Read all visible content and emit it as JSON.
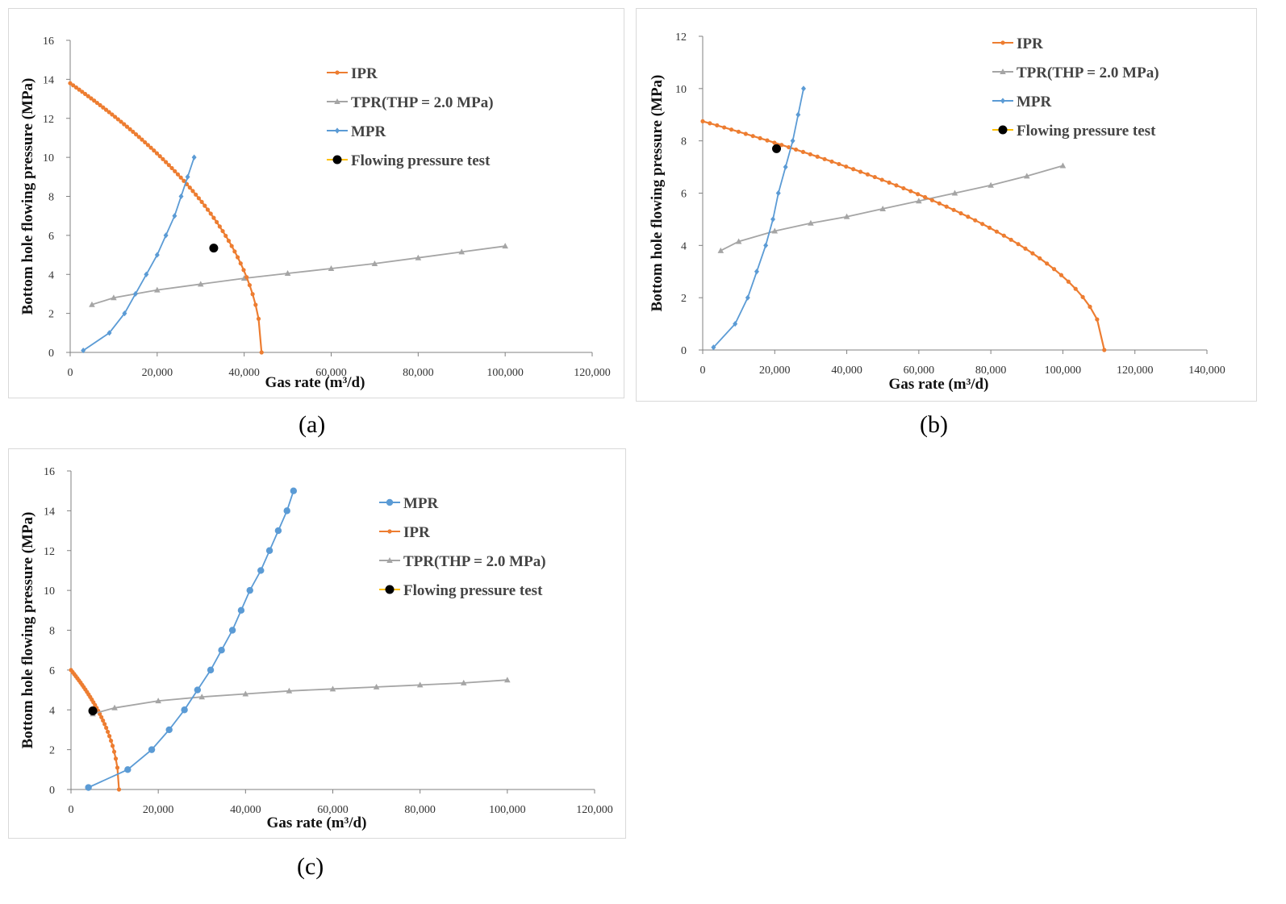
{
  "captions": [
    "(a)",
    "(b)",
    "(c)"
  ],
  "colors": {
    "ipr": "#ED7D31",
    "tpr": "#A5A5A5",
    "mpr": "#5B9BD5",
    "test": "#000000",
    "test_line": "#FFC000",
    "axis": "#808080",
    "frame": "#D9D9D9"
  },
  "chart_data": [
    {
      "type": "line",
      "panel": "(a)",
      "xlabel": "Gas rate (m³/d)",
      "ylabel": "Bottom hole flowing pressure (MPa)",
      "xlim": [
        0,
        120000
      ],
      "ylim": [
        0,
        16
      ],
      "x_ticks": [
        "0",
        "20,000",
        "40,000",
        "60,000",
        "80,000",
        "100,000",
        "120,000"
      ],
      "y_ticks": [
        "0",
        "2",
        "4",
        "6",
        "8",
        "10",
        "12",
        "14",
        "16"
      ],
      "legend": [
        "IPR",
        "TPR(THP = 2.0 MPa)",
        "MPR",
        "Flowing pressure test"
      ],
      "series": [
        {
          "name": "IPR",
          "kind": "ipr",
          "p0": 13.8,
          "qmax": 44000,
          "n": 64
        },
        {
          "name": "TPR(THP = 2.0 MPa)",
          "kind": "points",
          "x": [
            5000,
            10000,
            20000,
            30000,
            40000,
            50000,
            60000,
            70000,
            80000,
            90000,
            100000
          ],
          "y": [
            2.45,
            2.8,
            3.2,
            3.5,
            3.8,
            4.05,
            4.3,
            4.55,
            4.85,
            5.15,
            5.45
          ]
        },
        {
          "name": "MPR",
          "kind": "points",
          "x": [
            3000,
            9000,
            12500,
            15000,
            17500,
            20000,
            22000,
            24000,
            25500,
            27000,
            28500
          ],
          "y": [
            0.1,
            1,
            2,
            3,
            4,
            5,
            6,
            7,
            8,
            9,
            10
          ]
        },
        {
          "name": "Flowing pressure test",
          "kind": "test",
          "x": [
            33000
          ],
          "y": [
            5.35
          ]
        }
      ]
    },
    {
      "type": "line",
      "panel": "(b)",
      "xlabel": "Gas rate (m³/d)",
      "ylabel": "Bottom hole flowing pressure (MPa)",
      "xlim": [
        0,
        140000
      ],
      "ylim": [
        0,
        12
      ],
      "x_ticks": [
        "0",
        "20,000",
        "40,000",
        "60,000",
        "80,000",
        "100,000",
        "120,000",
        "140,000"
      ],
      "y_ticks": [
        "0",
        "2",
        "4",
        "6",
        "8",
        "10",
        "12"
      ],
      "legend": [
        "IPR",
        "TPR(THP = 2.0 MPa)",
        "MPR",
        "Flowing pressure test"
      ],
      "series": [
        {
          "name": "IPR",
          "kind": "ipr",
          "p0": 8.75,
          "qmax": 111500,
          "n": 56
        },
        {
          "name": "TPR(THP = 2.0 MPa)",
          "kind": "points",
          "x": [
            5000,
            10000,
            20000,
            30000,
            40000,
            50000,
            60000,
            70000,
            80000,
            90000,
            100000
          ],
          "y": [
            3.8,
            4.15,
            4.55,
            4.85,
            5.1,
            5.4,
            5.7,
            6.0,
            6.3,
            6.65,
            7.05
          ]
        },
        {
          "name": "MPR",
          "kind": "points",
          "x": [
            3000,
            9000,
            12500,
            15000,
            17500,
            19500,
            21000,
            23000,
            25000,
            26500,
            28000
          ],
          "y": [
            0.1,
            1,
            2,
            3,
            4,
            5,
            6,
            7,
            8,
            9,
            10
          ]
        },
        {
          "name": "Flowing pressure test",
          "kind": "test",
          "x": [
            20500
          ],
          "y": [
            7.7
          ]
        }
      ]
    },
    {
      "type": "line",
      "panel": "(c)",
      "xlabel": "Gas rate (m³/d)",
      "ylabel": "Bottom hole flowing pressure (MPa)",
      "xlim": [
        0,
        120000
      ],
      "ylim": [
        0,
        16
      ],
      "x_ticks": [
        "0",
        "20,000",
        "40,000",
        "60,000",
        "80,000",
        "100,000",
        "120,000"
      ],
      "y_ticks": [
        "0",
        "2",
        "4",
        "6",
        "8",
        "10",
        "12",
        "14",
        "16"
      ],
      "legend": [
        "MPR",
        "IPR",
        "TPR(THP = 2.0 MPa)",
        "Flowing pressure test"
      ],
      "series": [
        {
          "name": "MPR",
          "kind": "points",
          "x": [
            4000,
            13000,
            18500,
            22500,
            26000,
            29000,
            32000,
            34500,
            37000,
            39000,
            41000,
            43500,
            45500,
            47500,
            49500,
            51000
          ],
          "y": [
            0.1,
            1,
            2,
            3,
            4,
            5,
            6,
            7,
            8,
            9,
            10,
            11,
            12,
            13,
            14,
            15
          ]
        },
        {
          "name": "IPR",
          "kind": "ipr",
          "p0": 6.0,
          "qmax": 11000,
          "n": 30
        },
        {
          "name": "TPR(THP = 2.0 MPa)",
          "kind": "points",
          "x": [
            5000,
            10000,
            20000,
            30000,
            40000,
            50000,
            60000,
            70000,
            80000,
            90000,
            100000
          ],
          "y": [
            3.8,
            4.1,
            4.45,
            4.65,
            4.8,
            4.95,
            5.05,
            5.15,
            5.25,
            5.35,
            5.5
          ]
        },
        {
          "name": "Flowing pressure test",
          "kind": "test",
          "x": [
            5000
          ],
          "y": [
            3.95
          ]
        }
      ]
    }
  ]
}
